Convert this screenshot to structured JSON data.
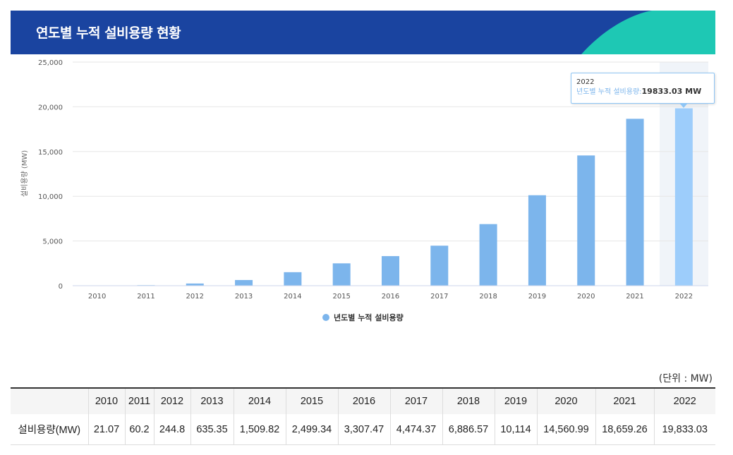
{
  "header": {
    "title": "연도별 누적 설비용량 현황"
  },
  "chart_data": {
    "type": "bar",
    "title": "연도별 누적 설비용량 현황",
    "categories": [
      "2010",
      "2011",
      "2012",
      "2013",
      "2014",
      "2015",
      "2016",
      "2017",
      "2018",
      "2019",
      "2020",
      "2021",
      "2022"
    ],
    "series": [
      {
        "name": "년도별 누적 설비용량",
        "values": [
          21.07,
          60.2,
          244.8,
          635.35,
          1509.82,
          2499.34,
          3307.47,
          4474.37,
          6886.57,
          10114,
          14560.99,
          18659.26,
          19833.03
        ]
      }
    ],
    "ylabel": "설비용량 (MW)",
    "xlabel": "",
    "ylim": [
      0,
      25000
    ],
    "yticks": [
      "0",
      "5,000",
      "10,000",
      "15,000",
      "20,000",
      "25,000"
    ],
    "legend": "bottom-center",
    "colors": {
      "bar": "#7cb5ec",
      "bar_highlight": "#9dcdfb",
      "hover_band": "#f0f4f9"
    }
  },
  "tooltip": {
    "year": "2022",
    "series_label": "년도별 누적 설비용량:",
    "value": "19833.03 MW"
  },
  "table": {
    "unit_note": "(단위 : MW)",
    "headers": [
      "",
      "2010",
      "2011",
      "2012",
      "2013",
      "2014",
      "2015",
      "2016",
      "2017",
      "2018",
      "2019",
      "2020",
      "2021",
      "2022"
    ],
    "row_label": "설비용량(MW)",
    "row_values": [
      "21.07",
      "60.2",
      "244.8",
      "635.35",
      "1,509.82",
      "2,499.34",
      "3,307.47",
      "4,474.37",
      "6,886.57",
      "10,114",
      "14,560.99",
      "18,659.26",
      "19,833.03"
    ]
  },
  "colors": {
    "header_bg": "#1a44a0",
    "header_accent": "#1ec8b4"
  }
}
